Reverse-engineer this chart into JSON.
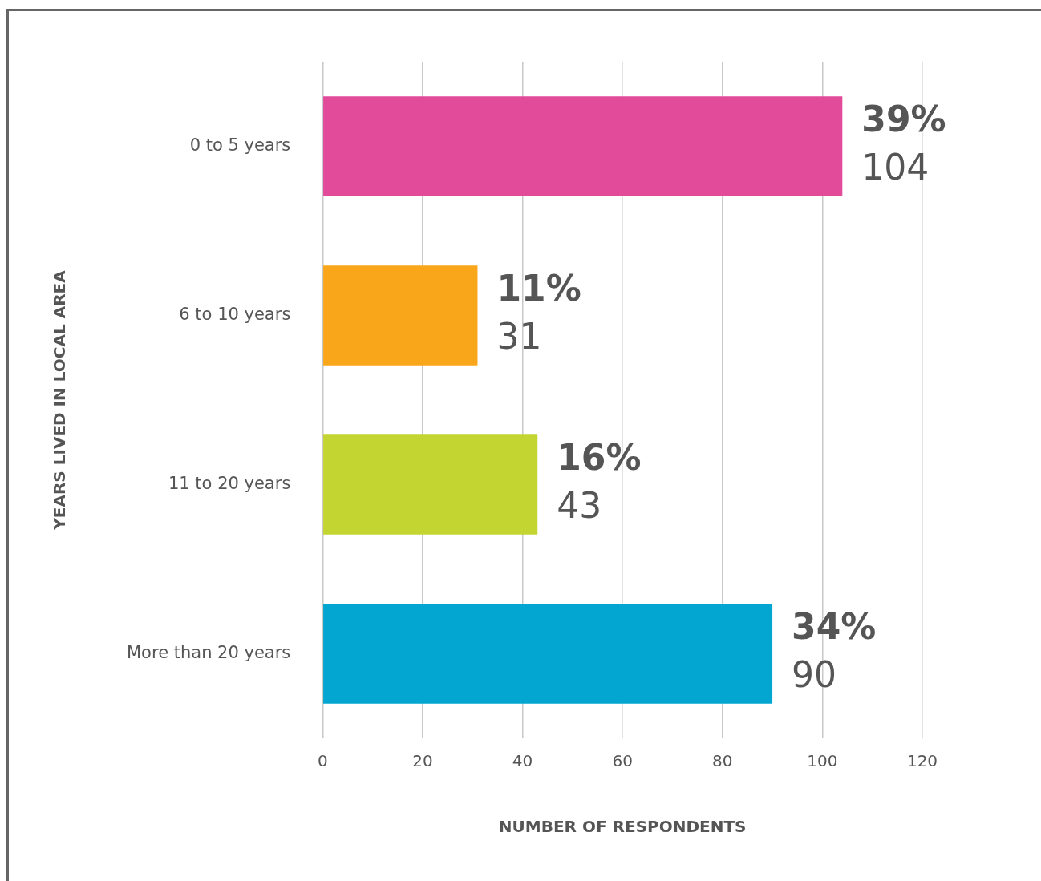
{
  "chart_data": {
    "type": "bar",
    "orientation": "horizontal",
    "xlabel": "NUMBER OF RESPONDENTS",
    "ylabel": "YEARS LIVED IN LOCAL AREA",
    "categories": [
      "0 to 5 years",
      "6 to 10 years",
      "11 to 20 years",
      "More than 20 years"
    ],
    "values": [
      104,
      31,
      43,
      90
    ],
    "colors": [
      "#e24a9a",
      "#f9a61a",
      "#c3d530",
      "#03a6d0"
    ],
    "value_labels": [
      "39%\n104",
      "11%\n31",
      "16%\n43",
      "34%\n90"
    ],
    "xlim": [
      0,
      120
    ],
    "xticks": [
      0,
      20,
      40,
      60,
      80,
      100,
      120
    ],
    "grid": "x",
    "legend": false
  }
}
